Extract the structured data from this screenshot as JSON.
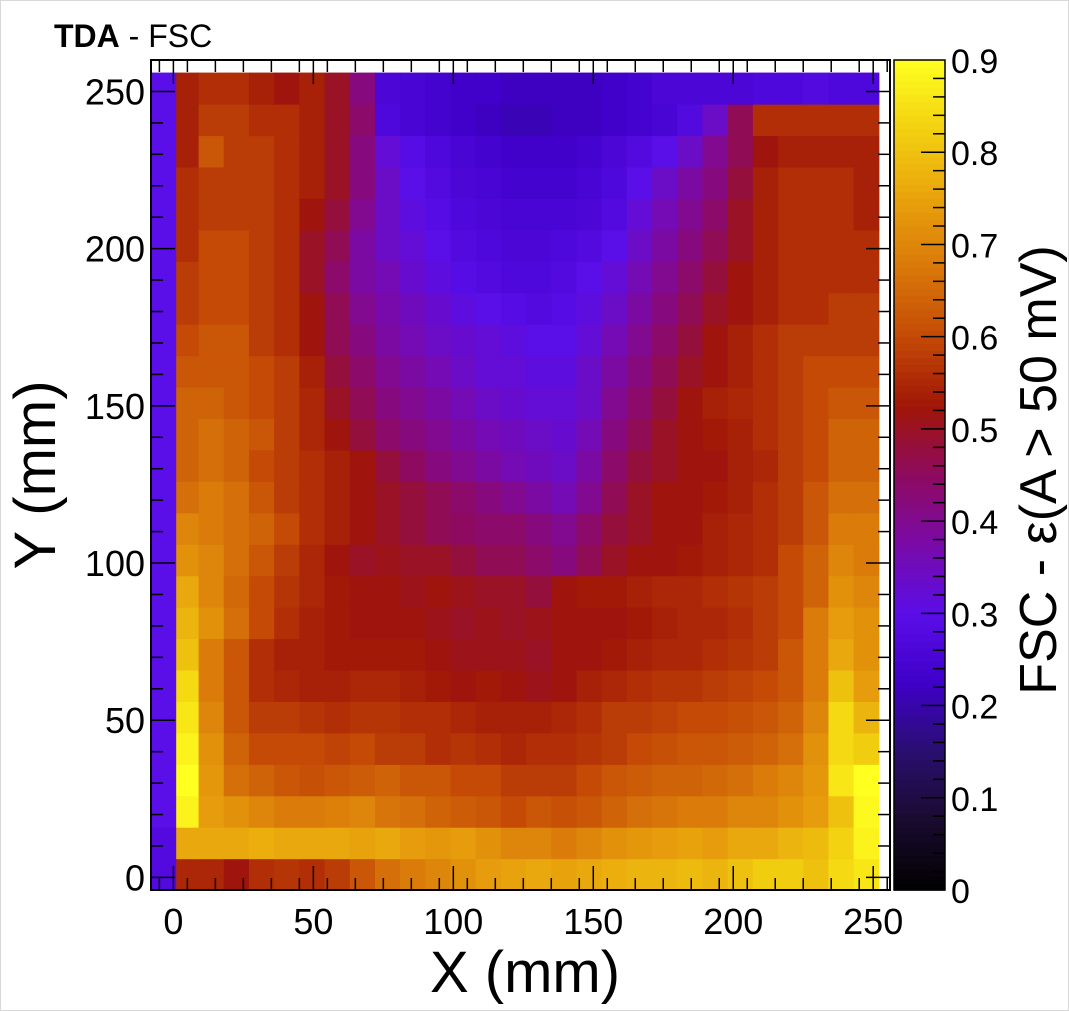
{
  "title": {
    "bold": "TDA",
    "rest": " - FSC"
  },
  "chart_data": {
    "type": "heatmap",
    "title": "TDA - FSC",
    "xlabel": "X (mm)",
    "ylabel": "Y (mm)",
    "zlabel": "FSC - ε(A > 50 mV)",
    "xlim": [
      -8,
      256
    ],
    "ylim": [
      -4,
      260
    ],
    "zlim": [
      0,
      0.9
    ],
    "x_ticks": [
      0,
      50,
      100,
      150,
      200,
      250
    ],
    "y_ticks": [
      0,
      50,
      100,
      150,
      200,
      250
    ],
    "z_ticks": [
      0,
      0.1,
      0.2,
      0.3,
      0.4,
      0.5,
      0.6,
      0.7,
      0.8,
      0.9
    ],
    "colormap": [
      "#000000",
      "#190b2e",
      "#2a0f6e",
      "#3f00c8",
      "#5a0ee8",
      "#7a0aa8",
      "#8e0a60",
      "#a01608",
      "#c44a06",
      "#d9780a",
      "#e8a20c",
      "#f2d010",
      "#ffff20"
    ],
    "x_bins": [
      -8,
      1,
      9,
      18,
      27,
      36,
      45,
      54,
      63,
      72,
      81,
      90,
      99,
      108,
      117,
      126,
      135,
      144,
      153,
      162,
      171,
      180,
      189,
      198,
      207,
      216,
      225,
      234,
      243,
      252
    ],
    "y_bins": [
      -4,
      6,
      16,
      26,
      36,
      46,
      56,
      66,
      76,
      86,
      96,
      106,
      116,
      126,
      136,
      146,
      156,
      166,
      176,
      186,
      196,
      206,
      216,
      226,
      236,
      246,
      256
    ],
    "z": [
      [
        0.28,
        0.55,
        0.55,
        0.52,
        0.56,
        0.57,
        0.56,
        0.58,
        0.62,
        0.66,
        0.68,
        0.7,
        0.72,
        0.74,
        0.75,
        0.76,
        0.75,
        0.76,
        0.77,
        0.78,
        0.78,
        0.79,
        0.78,
        0.8,
        0.82,
        0.82,
        0.8,
        0.84,
        0.86
      ],
      [
        0.28,
        0.76,
        0.76,
        0.76,
        0.77,
        0.76,
        0.76,
        0.76,
        0.75,
        0.76,
        0.74,
        0.73,
        0.74,
        0.72,
        0.7,
        0.7,
        0.68,
        0.7,
        0.72,
        0.73,
        0.74,
        0.75,
        0.74,
        0.76,
        0.76,
        0.78,
        0.79,
        0.83,
        0.88
      ],
      [
        0.3,
        0.88,
        0.74,
        0.72,
        0.7,
        0.68,
        0.68,
        0.69,
        0.7,
        0.67,
        0.66,
        0.64,
        0.63,
        0.62,
        0.6,
        0.62,
        0.61,
        0.62,
        0.64,
        0.66,
        0.67,
        0.68,
        0.68,
        0.7,
        0.7,
        0.72,
        0.74,
        0.8,
        0.89
      ],
      [
        0.3,
        0.9,
        0.73,
        0.66,
        0.64,
        0.62,
        0.61,
        0.62,
        0.63,
        0.64,
        0.62,
        0.62,
        0.6,
        0.6,
        0.58,
        0.58,
        0.58,
        0.6,
        0.62,
        0.63,
        0.64,
        0.64,
        0.65,
        0.66,
        0.68,
        0.7,
        0.73,
        0.86,
        0.9
      ],
      [
        0.3,
        0.88,
        0.72,
        0.64,
        0.6,
        0.6,
        0.6,
        0.59,
        0.6,
        0.58,
        0.58,
        0.56,
        0.57,
        0.56,
        0.55,
        0.56,
        0.56,
        0.57,
        0.58,
        0.6,
        0.61,
        0.62,
        0.62,
        0.63,
        0.64,
        0.66,
        0.72,
        0.84,
        0.82
      ],
      [
        0.3,
        0.86,
        0.7,
        0.62,
        0.58,
        0.58,
        0.57,
        0.56,
        0.57,
        0.57,
        0.56,
        0.56,
        0.55,
        0.54,
        0.54,
        0.54,
        0.55,
        0.56,
        0.58,
        0.58,
        0.59,
        0.6,
        0.6,
        0.61,
        0.62,
        0.64,
        0.7,
        0.84,
        0.78
      ],
      [
        0.3,
        0.84,
        0.68,
        0.62,
        0.56,
        0.55,
        0.54,
        0.54,
        0.55,
        0.55,
        0.54,
        0.53,
        0.52,
        0.53,
        0.52,
        0.51,
        0.52,
        0.54,
        0.55,
        0.56,
        0.57,
        0.57,
        0.58,
        0.59,
        0.6,
        0.62,
        0.68,
        0.8,
        0.74
      ],
      [
        0.3,
        0.8,
        0.68,
        0.62,
        0.56,
        0.54,
        0.54,
        0.53,
        0.53,
        0.53,
        0.53,
        0.52,
        0.51,
        0.51,
        0.51,
        0.5,
        0.52,
        0.52,
        0.53,
        0.54,
        0.55,
        0.55,
        0.56,
        0.57,
        0.58,
        0.62,
        0.68,
        0.76,
        0.72
      ],
      [
        0.3,
        0.78,
        0.72,
        0.66,
        0.6,
        0.56,
        0.54,
        0.53,
        0.52,
        0.52,
        0.52,
        0.51,
        0.5,
        0.51,
        0.5,
        0.51,
        0.52,
        0.52,
        0.52,
        0.53,
        0.54,
        0.55,
        0.55,
        0.56,
        0.58,
        0.6,
        0.68,
        0.74,
        0.72
      ],
      [
        0.3,
        0.76,
        0.7,
        0.65,
        0.6,
        0.57,
        0.55,
        0.53,
        0.52,
        0.52,
        0.51,
        0.52,
        0.51,
        0.5,
        0.5,
        0.48,
        0.52,
        0.53,
        0.53,
        0.54,
        0.55,
        0.55,
        0.56,
        0.57,
        0.58,
        0.6,
        0.64,
        0.72,
        0.7
      ],
      [
        0.3,
        0.72,
        0.7,
        0.66,
        0.62,
        0.58,
        0.55,
        0.52,
        0.5,
        0.51,
        0.5,
        0.5,
        0.48,
        0.46,
        0.46,
        0.44,
        0.42,
        0.46,
        0.5,
        0.52,
        0.52,
        0.53,
        0.54,
        0.55,
        0.56,
        0.6,
        0.64,
        0.7,
        0.68
      ],
      [
        0.3,
        0.7,
        0.68,
        0.66,
        0.64,
        0.6,
        0.56,
        0.54,
        0.52,
        0.5,
        0.48,
        0.46,
        0.45,
        0.44,
        0.44,
        0.42,
        0.4,
        0.44,
        0.48,
        0.5,
        0.52,
        0.52,
        0.54,
        0.55,
        0.56,
        0.58,
        0.62,
        0.68,
        0.68
      ],
      [
        0.3,
        0.66,
        0.68,
        0.66,
        0.62,
        0.58,
        0.56,
        0.54,
        0.52,
        0.5,
        0.48,
        0.46,
        0.44,
        0.42,
        0.4,
        0.38,
        0.36,
        0.4,
        0.46,
        0.5,
        0.52,
        0.52,
        0.53,
        0.54,
        0.56,
        0.58,
        0.62,
        0.66,
        0.66
      ],
      [
        0.3,
        0.64,
        0.66,
        0.64,
        0.6,
        0.58,
        0.56,
        0.54,
        0.52,
        0.48,
        0.45,
        0.42,
        0.4,
        0.38,
        0.36,
        0.35,
        0.34,
        0.38,
        0.44,
        0.48,
        0.5,
        0.52,
        0.52,
        0.54,
        0.55,
        0.58,
        0.6,
        0.64,
        0.64
      ],
      [
        0.3,
        0.64,
        0.66,
        0.64,
        0.62,
        0.58,
        0.55,
        0.52,
        0.48,
        0.44,
        0.42,
        0.4,
        0.38,
        0.36,
        0.35,
        0.34,
        0.33,
        0.36,
        0.42,
        0.46,
        0.5,
        0.52,
        0.53,
        0.54,
        0.56,
        0.58,
        0.6,
        0.64,
        0.64
      ],
      [
        0.3,
        0.64,
        0.64,
        0.62,
        0.6,
        0.58,
        0.55,
        0.5,
        0.46,
        0.42,
        0.4,
        0.38,
        0.36,
        0.34,
        0.33,
        0.32,
        0.32,
        0.34,
        0.4,
        0.44,
        0.48,
        0.52,
        0.54,
        0.55,
        0.56,
        0.58,
        0.6,
        0.62,
        0.62
      ],
      [
        0.3,
        0.62,
        0.62,
        0.62,
        0.6,
        0.58,
        0.54,
        0.48,
        0.44,
        0.4,
        0.38,
        0.36,
        0.34,
        0.32,
        0.32,
        0.31,
        0.31,
        0.34,
        0.38,
        0.42,
        0.46,
        0.5,
        0.52,
        0.54,
        0.56,
        0.58,
        0.6,
        0.6,
        0.6
      ],
      [
        0.3,
        0.6,
        0.62,
        0.62,
        0.58,
        0.56,
        0.52,
        0.46,
        0.42,
        0.38,
        0.36,
        0.34,
        0.33,
        0.32,
        0.31,
        0.3,
        0.3,
        0.32,
        0.36,
        0.4,
        0.44,
        0.48,
        0.52,
        0.54,
        0.56,
        0.58,
        0.58,
        0.58,
        0.58
      ],
      [
        0.3,
        0.58,
        0.6,
        0.6,
        0.58,
        0.56,
        0.52,
        0.46,
        0.4,
        0.37,
        0.35,
        0.33,
        0.31,
        0.3,
        0.29,
        0.28,
        0.29,
        0.31,
        0.34,
        0.38,
        0.42,
        0.46,
        0.5,
        0.52,
        0.54,
        0.56,
        0.56,
        0.58,
        0.58
      ],
      [
        0.3,
        0.58,
        0.6,
        0.6,
        0.58,
        0.56,
        0.5,
        0.44,
        0.38,
        0.36,
        0.33,
        0.31,
        0.29,
        0.28,
        0.27,
        0.27,
        0.28,
        0.3,
        0.32,
        0.36,
        0.4,
        0.44,
        0.48,
        0.52,
        0.54,
        0.56,
        0.56,
        0.56,
        0.56
      ],
      [
        0.3,
        0.56,
        0.6,
        0.6,
        0.58,
        0.56,
        0.5,
        0.46,
        0.38,
        0.34,
        0.32,
        0.3,
        0.28,
        0.27,
        0.26,
        0.26,
        0.27,
        0.28,
        0.3,
        0.34,
        0.38,
        0.42,
        0.46,
        0.5,
        0.54,
        0.56,
        0.56,
        0.56,
        0.56
      ],
      [
        0.3,
        0.56,
        0.58,
        0.58,
        0.58,
        0.56,
        0.52,
        0.48,
        0.4,
        0.34,
        0.31,
        0.29,
        0.27,
        0.26,
        0.25,
        0.25,
        0.25,
        0.26,
        0.28,
        0.32,
        0.36,
        0.4,
        0.44,
        0.5,
        0.54,
        0.56,
        0.56,
        0.56,
        0.54
      ],
      [
        0.3,
        0.56,
        0.58,
        0.58,
        0.58,
        0.56,
        0.54,
        0.5,
        0.42,
        0.34,
        0.3,
        0.28,
        0.26,
        0.25,
        0.24,
        0.24,
        0.24,
        0.25,
        0.27,
        0.3,
        0.34,
        0.38,
        0.42,
        0.48,
        0.54,
        0.56,
        0.56,
        0.56,
        0.54
      ],
      [
        0.3,
        0.54,
        0.62,
        0.58,
        0.58,
        0.56,
        0.54,
        0.5,
        0.42,
        0.32,
        0.29,
        0.27,
        0.25,
        0.24,
        0.23,
        0.23,
        0.23,
        0.24,
        0.26,
        0.28,
        0.3,
        0.34,
        0.4,
        0.46,
        0.52,
        0.54,
        0.54,
        0.54,
        0.54
      ],
      [
        0.3,
        0.54,
        0.58,
        0.58,
        0.56,
        0.56,
        0.54,
        0.5,
        0.44,
        0.27,
        0.25,
        0.24,
        0.23,
        0.22,
        0.21,
        0.21,
        0.22,
        0.22,
        0.23,
        0.24,
        0.25,
        0.28,
        0.34,
        0.46,
        0.56,
        0.56,
        0.56,
        0.56,
        0.56
      ],
      [
        0.3,
        0.54,
        0.56,
        0.56,
        0.54,
        0.52,
        0.54,
        0.5,
        0.42,
        0.26,
        0.25,
        0.24,
        0.23,
        0.23,
        0.22,
        0.22,
        0.22,
        0.22,
        0.23,
        0.24,
        0.26,
        0.26,
        0.26,
        0.26,
        0.27,
        0.27,
        0.28,
        0.27,
        0.27
      ]
    ]
  }
}
